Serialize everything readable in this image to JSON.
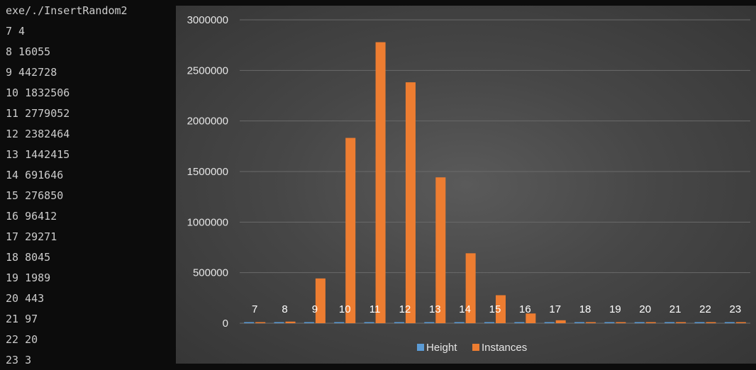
{
  "terminal": {
    "lines": [
      "exe/./InsertRandom2",
      "7 4",
      "8 16055",
      "9 442728",
      "10 1832506",
      "11 2779052",
      "12 2382464",
      "13 1442415",
      "14 691646",
      "15 276850",
      "16 96412",
      "17 29271",
      "18 8045",
      "19 1989",
      "20 443",
      "21 97",
      "22 20",
      "23 3"
    ]
  },
  "chart_data": {
    "type": "bar",
    "categories": [
      "7",
      "8",
      "9",
      "10",
      "11",
      "12",
      "13",
      "14",
      "15",
      "16",
      "17",
      "18",
      "19",
      "20",
      "21",
      "22",
      "23"
    ],
    "series": [
      {
        "name": "Height",
        "color": "#5b9bd5",
        "values": [
          7,
          8,
          9,
          10,
          11,
          12,
          13,
          14,
          15,
          16,
          17,
          18,
          19,
          20,
          21,
          22,
          23
        ]
      },
      {
        "name": "Instances",
        "color": "#ed7d31",
        "values": [
          4,
          16055,
          442728,
          1832506,
          2779052,
          2382464,
          1442415,
          691646,
          276850,
          96412,
          29271,
          8045,
          1989,
          443,
          97,
          20,
          3
        ]
      }
    ],
    "ylim": [
      0,
      3000000
    ],
    "yticks": [
      "0",
      "500000",
      "1000000",
      "1500000",
      "2000000",
      "2500000",
      "3000000"
    ],
    "grid": true,
    "legend": "bottom"
  }
}
